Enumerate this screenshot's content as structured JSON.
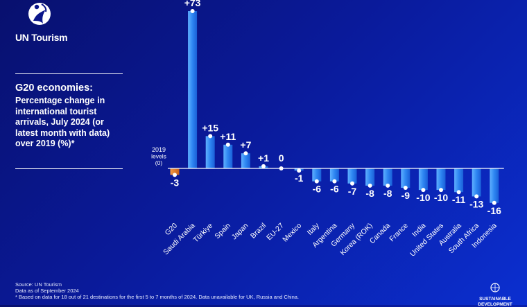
{
  "brand": {
    "name": "UN Tourism"
  },
  "chart_data": {
    "type": "bar",
    "title": "G20 economies:",
    "subtitle": "Percentage change in international tourist arrivals, July 2024 (or latest month with data) over 2019 (%)*",
    "baseline_label": "2019 levels (0)",
    "categories": [
      "G20",
      "Saudi Arabia",
      "Türkiye",
      "Spain",
      "Japan",
      "Brazil",
      "EU-27",
      "Mexico",
      "Italy",
      "Argentina",
      "Germany",
      "Korea (ROK)",
      "Canada",
      "France",
      "India",
      "United States",
      "Australia",
      "South Africa",
      "Indonesia"
    ],
    "values": [
      -3,
      73,
      15,
      11,
      7,
      1,
      0,
      -1,
      -6,
      -6,
      -7,
      -8,
      -8,
      -9,
      -10,
      -10,
      -11,
      -13,
      -16
    ],
    "value_labels": [
      "-3",
      "+73",
      "+15",
      "+11",
      "+7",
      "+1",
      "0",
      "-1",
      "-6",
      "-6",
      "-7",
      "-8",
      "-8",
      "-9",
      "-10",
      "-10",
      "-11",
      "-13",
      "-16"
    ],
    "ylim": [
      -16,
      73
    ],
    "highlight": "G20",
    "colors": {
      "bar": "#2d8cf0",
      "highlight": "#e8791e",
      "text": "#ffffff"
    }
  },
  "footer": {
    "source": "Source: UN Tourism",
    "data_as_of": "Data as of September 2024",
    "note": "* Based on data for 18 out of 21 destinations for the first 5 to 7 months of 2024. Data unavailable for UK, Russia and China."
  },
  "sdg": {
    "line1": "SUSTAINABLE",
    "line2": "DEVELOPMENT"
  }
}
